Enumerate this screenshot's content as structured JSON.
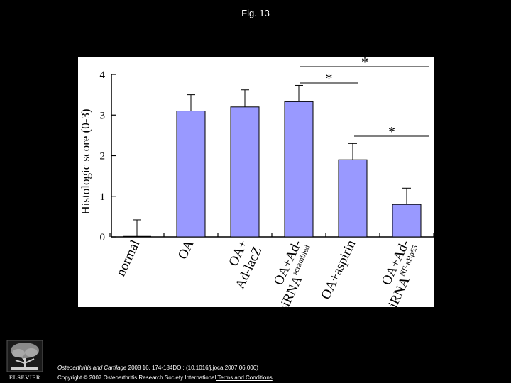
{
  "page": {
    "title": "Fig. 13",
    "citation_journal": "Osteoarthritis and Cartilage",
    "citation_rest": " 2008 16, 174-184DOI: (10.1016/j.joca.2007.06.006)",
    "copyright": "Copyright © 2007 Osteoarthritis Research Society International",
    "terms_link": " Terms and Conditions",
    "logo_text": "ELSEVIER"
  },
  "chart_data": {
    "type": "bar",
    "ylabel": "Histologic score (0-3)",
    "ylim": [
      0,
      4
    ],
    "yticks": [
      0,
      1,
      2,
      3,
      4
    ],
    "categories": [
      {
        "line1": "normal",
        "line2": "",
        "line2_sup": ""
      },
      {
        "line1": "OA",
        "line2": "",
        "line2_sup": ""
      },
      {
        "line1": "OA+",
        "line2": "Ad-lacZ",
        "line2_sup": ""
      },
      {
        "line1": "OA+Ad-",
        "line2": "siRNA",
        "line2_sup": "scrambled"
      },
      {
        "line1": "OA+aspirin",
        "line2": "",
        "line2_sup": ""
      },
      {
        "line1": "OA+Ad-",
        "line2": "siRNA",
        "line2_sup": "NF-κBp65"
      }
    ],
    "values": [
      0.0,
      3.1,
      3.2,
      3.33,
      1.9,
      0.8
    ],
    "errors": [
      0.42,
      0.4,
      0.42,
      0.4,
      0.4,
      0.4
    ],
    "significance": [
      {
        "from": 3,
        "to": 5,
        "label": "*"
      },
      {
        "from": 3,
        "to": 4,
        "label": "*"
      },
      {
        "from": 4,
        "to": 5,
        "label": "*"
      }
    ],
    "bar_color": "#9999ff",
    "grid": false
  }
}
